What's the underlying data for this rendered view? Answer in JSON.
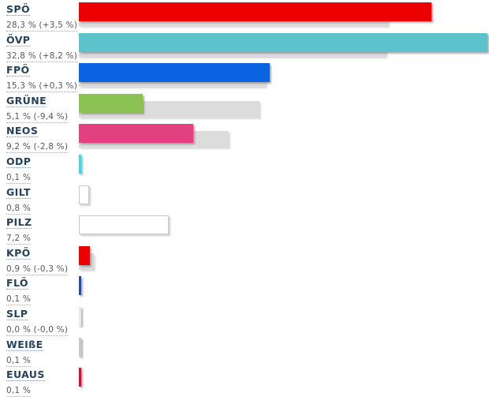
{
  "chart_data": {
    "type": "bar",
    "orientation": "horizontal",
    "unit": "%",
    "value_axis_range": [
      0,
      33
    ],
    "grid": false,
    "legend": false,
    "previous_bar_color": "#dcdcdc",
    "label_color": "#24425c",
    "value_text_color": "#58585a",
    "categories": [
      "SPÖ",
      "ÖVP",
      "FPÖ",
      "GRÜNE",
      "NEOS",
      "ODP",
      "GILT",
      "PILZ",
      "KPÖ",
      "FLÖ",
      "SLP",
      "WEIßE",
      "EUAUS"
    ],
    "series": [
      {
        "name": "result",
        "values": [
          28.3,
          32.8,
          15.3,
          5.1,
          9.2,
          0.1,
          0.8,
          7.2,
          0.9,
          0.1,
          0.0,
          0.1,
          0.1
        ]
      },
      {
        "name": "previous",
        "values": [
          24.8,
          24.6,
          15.0,
          14.5,
          12.0,
          null,
          null,
          null,
          1.2,
          null,
          0.0,
          null,
          null
        ]
      }
    ],
    "rows": [
      {
        "label": "SPÖ",
        "value_text": "28,3 % (+3,5 %)",
        "value": 28.3,
        "previous": 24.8,
        "color": "#ec0000"
      },
      {
        "label": "ÖVP",
        "value_text": "32,8 % (+8,2 %)",
        "value": 32.8,
        "previous": 24.6,
        "color": "#5cc3cc"
      },
      {
        "label": "FPÖ",
        "value_text": "15,3 % (+0,3 %)",
        "value": 15.3,
        "previous": 15.0,
        "color": "#0a63e0"
      },
      {
        "label": "GRÜNE",
        "value_text": "5,1 % (-9,4 %)",
        "value": 5.1,
        "previous": 14.5,
        "color": "#8ac352"
      },
      {
        "label": "NEOS",
        "value_text": "9,2 % (-2,8 %)",
        "value": 9.2,
        "previous": 12.0,
        "color": "#e2407e"
      },
      {
        "label": "ODP",
        "value_text": "0,1 %",
        "value": 0.1,
        "previous": null,
        "color": "#45d4df"
      },
      {
        "label": "GILT",
        "value_text": "0,8 %",
        "value": 0.8,
        "previous": null,
        "color": "#ffffff",
        "border": "#c8c8c8"
      },
      {
        "label": "PILZ",
        "value_text": "7,2 %",
        "value": 7.2,
        "previous": null,
        "color": "#ffffff",
        "border": "#c8c8c8"
      },
      {
        "label": "KPÖ",
        "value_text": "0,9 % (-0,3 %)",
        "value": 0.9,
        "previous": 1.2,
        "color": "#ec0000"
      },
      {
        "label": "FLÖ",
        "value_text": "0,1 %",
        "value": 0.1,
        "previous": null,
        "color": "#2b4a9b"
      },
      {
        "label": "SLP",
        "value_text": "0,0 % (-0,0 %)",
        "value": 0.0,
        "previous": 0.0,
        "color": "#e9e9e9"
      },
      {
        "label": "WEIßE",
        "value_text": "0,1 %",
        "value": 0.1,
        "previous": null,
        "color": "#c9c9c9"
      },
      {
        "label": "EUAUS",
        "value_text": "0,1 %",
        "value": 0.1,
        "previous": null,
        "color": "#c8152d"
      }
    ]
  }
}
